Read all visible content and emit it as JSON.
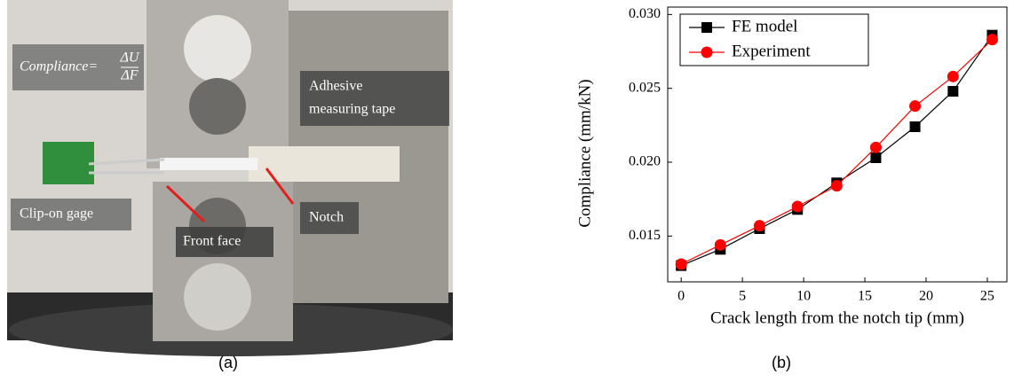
{
  "photo": {
    "caption": "(a)",
    "formula": {
      "lhs": "Compliance=",
      "numerator": "ΔU",
      "denominator": "ΔF"
    },
    "labels": {
      "tape": [
        "Adhesive",
        "measuring tape"
      ],
      "gage": "Clip-on gage",
      "notch": "Notch",
      "front": "Front face"
    }
  },
  "chart_data": {
    "type": "line",
    "caption": "(b)",
    "x_label": "Crack length from the notch tip (mm)",
    "y_label": "Compliance (mm/kN)",
    "x": [
      0,
      3.2,
      6.4,
      9.5,
      12.7,
      15.9,
      19.1,
      22.2,
      25.4
    ],
    "series": [
      {
        "name": "FE model",
        "color": "#000000",
        "marker": "square",
        "values": [
          0.013,
          0.0141,
          0.0155,
          0.0168,
          0.0186,
          0.0203,
          0.0224,
          0.0248,
          0.0286
        ]
      },
      {
        "name": "Experiment",
        "color": "#ff0000",
        "marker": "circle",
        "values": [
          0.0131,
          0.0144,
          0.0157,
          0.017,
          0.0184,
          0.021,
          0.0238,
          0.0258,
          0.0283
        ]
      }
    ],
    "xlim": [
      -1.1,
      26.6
    ],
    "xticks": [
      0,
      5,
      10,
      15,
      20,
      25
    ],
    "ylim": [
      0.0119,
      0.0305
    ],
    "yticks": [
      0.015,
      {
        "value": 0.02,
        "label": "0.020"
      },
      0.025,
      {
        "value": 0.03,
        "label": "0.030"
      }
    ],
    "legend": "upper left"
  }
}
